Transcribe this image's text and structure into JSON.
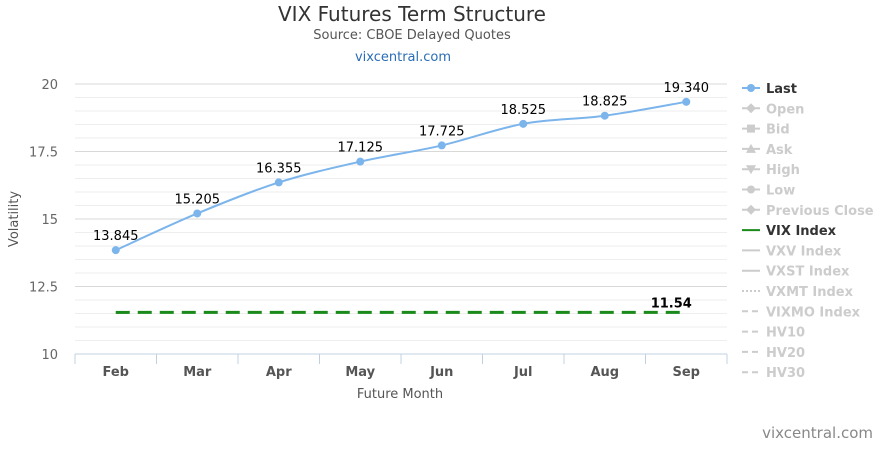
{
  "chart_data": {
    "type": "line",
    "title": "VIX Futures Term Structure",
    "subtitle": "Source: CBOE Delayed Quotes",
    "subtitle_link": "vixcentral.com",
    "xlabel": "Future Month",
    "ylabel": "Volatility",
    "categories": [
      "Feb",
      "Mar",
      "Apr",
      "May",
      "Jun",
      "Jul",
      "Aug",
      "Sep"
    ],
    "ylim": [
      10,
      20
    ],
    "yticks": [
      10,
      12.5,
      15,
      17.5,
      20
    ],
    "ytick_labels": [
      "10",
      "12.5",
      "15",
      "17.5",
      "20"
    ],
    "grid": true,
    "series": [
      {
        "name": "Last",
        "values": [
          13.845,
          15.205,
          16.355,
          17.125,
          17.725,
          18.525,
          18.825,
          19.34
        ],
        "labels": [
          "13.845",
          "15.205",
          "16.355",
          "17.125",
          "17.725",
          "18.525",
          "18.825",
          "19.340"
        ],
        "color": "#7cb5ec"
      },
      {
        "name": "VIX Index",
        "value": 11.54,
        "label": "11.54",
        "color": "#1a8a1a"
      }
    ],
    "legend_position": "right",
    "legend": [
      {
        "name": "Last",
        "symbol": "circle",
        "active": true,
        "color": "#7cb5ec"
      },
      {
        "name": "Open",
        "symbol": "diamond",
        "active": false
      },
      {
        "name": "Bid",
        "symbol": "square",
        "active": false
      },
      {
        "name": "Ask",
        "symbol": "triangle",
        "active": false
      },
      {
        "name": "High",
        "symbol": "triangle-down",
        "active": false
      },
      {
        "name": "Low",
        "symbol": "circle",
        "active": false
      },
      {
        "name": "Previous Close",
        "symbol": "diamond",
        "active": false
      },
      {
        "name": "VIX Index",
        "symbol": "line",
        "active": true,
        "color": "#1a8a1a"
      },
      {
        "name": "VXV Index",
        "symbol": "line",
        "active": false
      },
      {
        "name": "VXST Index",
        "symbol": "line",
        "active": false
      },
      {
        "name": "VXMT Index",
        "symbol": "dotted",
        "active": false
      },
      {
        "name": "VIXMO Index",
        "symbol": "dashed",
        "active": false
      },
      {
        "name": "HV10",
        "symbol": "dashed",
        "active": false
      },
      {
        "name": "HV20",
        "symbol": "dashed",
        "active": false
      },
      {
        "name": "HV30",
        "symbol": "dashed",
        "active": false
      }
    ],
    "credit": "vixcentral.com"
  }
}
